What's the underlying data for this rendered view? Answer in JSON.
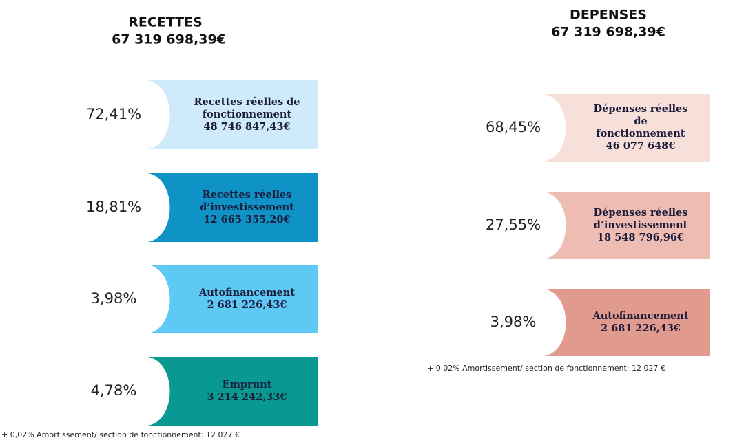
{
  "sections": [
    {
      "title": "RECETTES",
      "total": "67 319 698,39€",
      "items": [
        {
          "percent": "72,41%",
          "label_lines": [
            "Recettes réelles de",
            "fonctionnement"
          ],
          "amount": "48 746 847,43€",
          "color": "#cfeafb"
        },
        {
          "percent": "18,81%",
          "label_lines": [
            "Recettes réelles",
            "d’investissement"
          ],
          "amount": "12 665 355,20€",
          "color": "#0f92c6"
        },
        {
          "percent": "3,98%",
          "label_lines": [
            "Autofinancement"
          ],
          "amount": "2 681 226,43€",
          "color": "#5fc9f5"
        },
        {
          "percent": "4,78%",
          "label_lines": [
            "Emprunt"
          ],
          "amount": "3 214 242,33€",
          "color": "#0a9892"
        }
      ],
      "note": "+ 0,02% Amortissement/ section de fonctionnement: 12 027 €"
    },
    {
      "title": "DEPENSES",
      "total": "67 319 698,39€",
      "items": [
        {
          "percent": "68,45%",
          "label_lines": [
            "Dépenses réelles",
            "de",
            "fonctionnement"
          ],
          "amount": "46 077 648€",
          "color": "#f7dfda"
        },
        {
          "percent": "27,55%",
          "label_lines": [
            "Dépenses réelles",
            "d’investissement"
          ],
          "amount": "18 548 796,96€",
          "color": "#eebcb3"
        },
        {
          "percent": "3,98%",
          "label_lines": [
            "Autofinancement"
          ],
          "amount": "2 681 226,43€",
          "color": "#e19a8e"
        }
      ],
      "note": "+ 0,02% Amortissement/ section de fonctionnement: 12 027 €"
    }
  ]
}
